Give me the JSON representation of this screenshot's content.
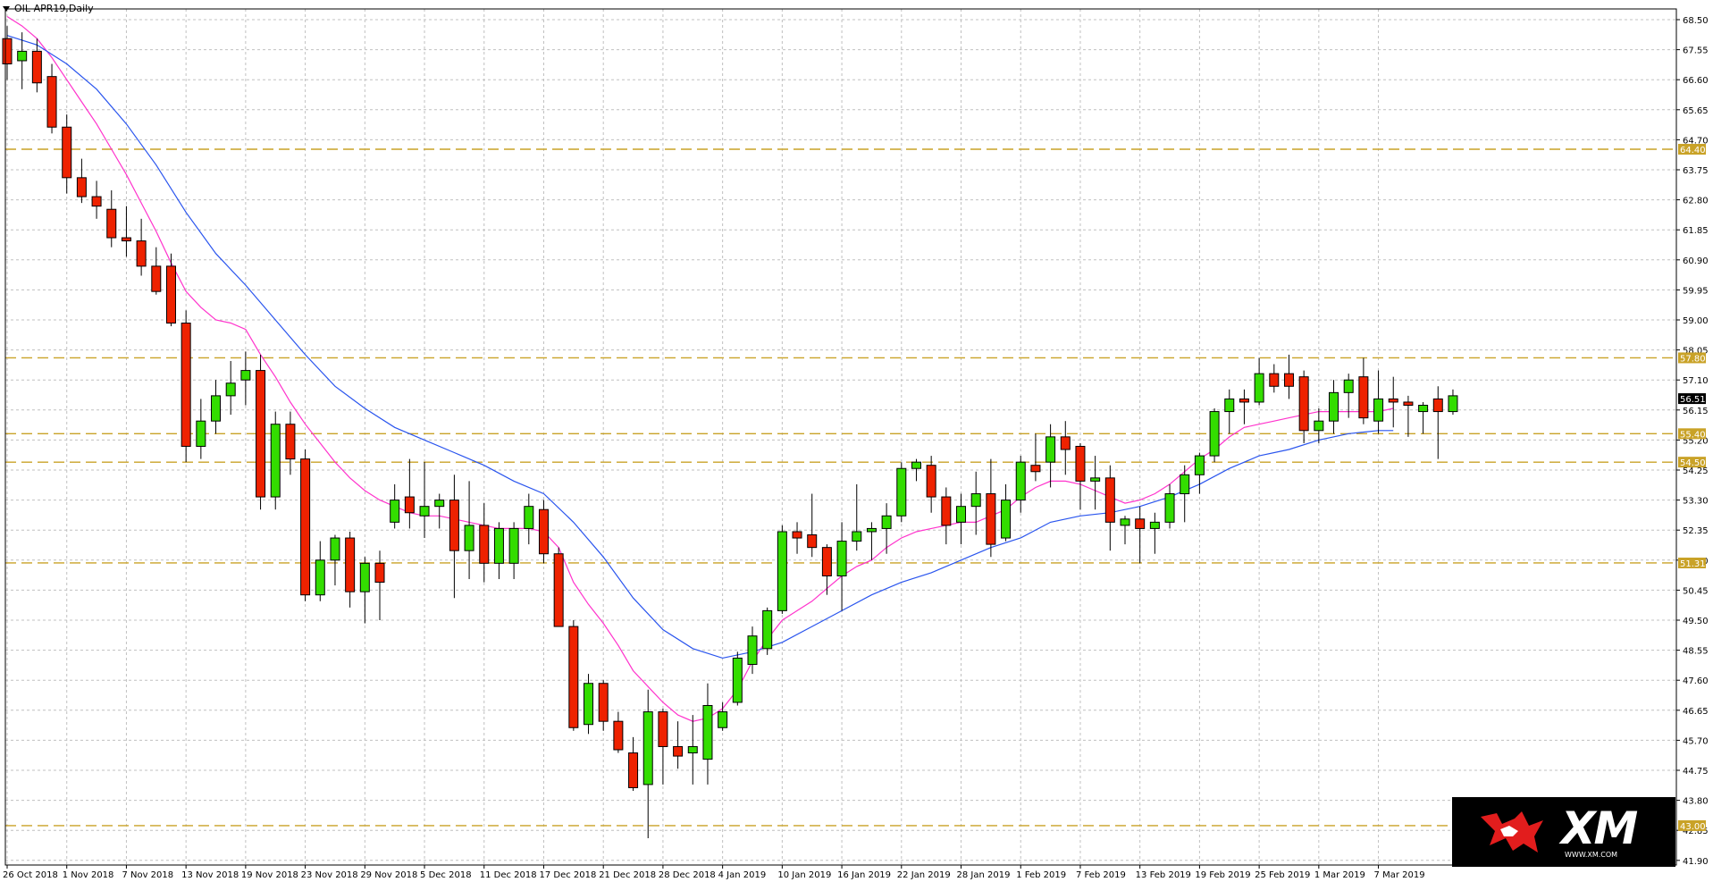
{
  "symbol_label": "OIL-APR19,Daily",
  "logo": {
    "brand": "XM",
    "url": "WWW.XM.COM"
  },
  "colors": {
    "background": "#ffffff",
    "grid": "#c0c0c0",
    "bull_candle": "#33dd00",
    "bear_candle": "#ee2200",
    "wick": "#000000",
    "fast_ma": "#ff33cc",
    "slow_ma": "#2a55ee",
    "level_line": "#c9a227",
    "level_tag_bg": "#c9a227",
    "price_tag_bg": "#000000"
  },
  "chart_data": {
    "type": "candlestick",
    "title": "OIL-APR19,Daily",
    "grid": true,
    "ylim": [
      41.2,
      69.1
    ],
    "y_ticks": [
      "68.50",
      "67.55",
      "66.60",
      "65.65",
      "64.70",
      "63.75",
      "62.80",
      "61.85",
      "60.90",
      "59.95",
      "59.00",
      "58.05",
      "57.10",
      "56.15",
      "55.20",
      "54.25",
      "53.30",
      "52.35",
      "51.40",
      "50.45",
      "49.50",
      "48.55",
      "47.60",
      "46.65",
      "45.70",
      "44.75",
      "43.80",
      "42.85",
      "41.90"
    ],
    "x_labels": [
      {
        "label": "26 Oct 2018",
        "index": 0
      },
      {
        "label": "1 Nov 2018",
        "index": 4
      },
      {
        "label": "7 Nov 2018",
        "index": 8
      },
      {
        "label": "13 Nov 2018",
        "index": 12
      },
      {
        "label": "19 Nov 2018",
        "index": 16
      },
      {
        "label": "23 Nov 2018",
        "index": 20
      },
      {
        "label": "29 Nov 2018",
        "index": 24
      },
      {
        "label": "5 Dec 2018",
        "index": 28
      },
      {
        "label": "11 Dec 2018",
        "index": 32
      },
      {
        "label": "17 Dec 2018",
        "index": 36
      },
      {
        "label": "21 Dec 2018",
        "index": 40
      },
      {
        "label": "28 Dec 2018",
        "index": 44
      },
      {
        "label": "4 Jan 2019",
        "index": 48
      },
      {
        "label": "10 Jan 2019",
        "index": 52
      },
      {
        "label": "16 Jan 2019",
        "index": 56
      },
      {
        "label": "22 Jan 2019",
        "index": 60
      },
      {
        "label": "28 Jan 2019",
        "index": 64
      },
      {
        "label": "1 Feb 2019",
        "index": 68
      },
      {
        "label": "7 Feb 2019",
        "index": 72
      },
      {
        "label": "13 Feb 2019",
        "index": 76
      },
      {
        "label": "19 Feb 2019",
        "index": 80
      },
      {
        "label": "25 Feb 2019",
        "index": 84
      },
      {
        "label": "1 Mar 2019",
        "index": 88
      },
      {
        "label": "7 Mar 2019",
        "index": 92
      }
    ],
    "ohlc": [
      [
        67.9,
        68.3,
        66.6,
        67.1
      ],
      [
        67.2,
        68.1,
        66.3,
        67.5
      ],
      [
        67.5,
        67.9,
        66.2,
        66.5
      ],
      [
        66.7,
        67.1,
        64.9,
        65.1
      ],
      [
        65.1,
        65.5,
        63.0,
        63.5
      ],
      [
        63.5,
        64.1,
        62.7,
        62.9
      ],
      [
        62.9,
        63.4,
        62.2,
        62.6
      ],
      [
        62.5,
        63.1,
        61.3,
        61.6
      ],
      [
        61.6,
        62.6,
        61.0,
        61.5
      ],
      [
        61.5,
        62.2,
        60.4,
        60.7
      ],
      [
        60.7,
        61.3,
        59.8,
        59.9
      ],
      [
        60.7,
        61.1,
        58.8,
        58.9
      ],
      [
        58.9,
        59.3,
        54.5,
        55.0
      ],
      [
        55.0,
        56.5,
        54.6,
        55.8
      ],
      [
        55.8,
        57.1,
        55.4,
        56.6
      ],
      [
        56.6,
        57.7,
        56.0,
        57.0
      ],
      [
        57.1,
        58.0,
        56.3,
        57.4
      ],
      [
        57.4,
        57.9,
        53.0,
        53.4
      ],
      [
        53.4,
        56.1,
        53.0,
        55.7
      ],
      [
        55.7,
        56.1,
        54.1,
        54.6
      ],
      [
        54.6,
        54.9,
        50.1,
        50.3
      ],
      [
        50.3,
        52.0,
        50.1,
        51.4
      ],
      [
        51.4,
        52.2,
        50.6,
        52.1
      ],
      [
        52.1,
        52.3,
        49.9,
        50.4
      ],
      [
        50.4,
        51.5,
        49.4,
        51.3
      ],
      [
        51.3,
        51.7,
        49.5,
        50.7
      ],
      [
        52.6,
        53.8,
        52.4,
        53.3
      ],
      [
        53.4,
        54.6,
        52.4,
        52.9
      ],
      [
        52.8,
        54.5,
        52.1,
        53.1
      ],
      [
        53.1,
        53.5,
        52.4,
        53.3
      ],
      [
        53.3,
        54.1,
        50.2,
        51.7
      ],
      [
        51.7,
        53.9,
        50.8,
        52.5
      ],
      [
        52.5,
        53.2,
        50.7,
        51.3
      ],
      [
        51.3,
        52.6,
        50.8,
        52.4
      ],
      [
        51.3,
        52.6,
        50.8,
        52.4
      ],
      [
        52.4,
        53.5,
        51.9,
        53.1
      ],
      [
        53.0,
        53.3,
        51.3,
        51.6
      ],
      [
        51.6,
        51.8,
        49.3,
        49.3
      ],
      [
        49.3,
        49.5,
        46.0,
        46.1
      ],
      [
        46.2,
        47.8,
        45.9,
        47.5
      ],
      [
        47.5,
        47.6,
        46.0,
        46.3
      ],
      [
        46.3,
        46.6,
        45.3,
        45.4
      ],
      [
        45.3,
        45.8,
        44.1,
        44.2
      ],
      [
        44.3,
        47.3,
        42.6,
        46.6
      ],
      [
        46.6,
        46.7,
        44.3,
        45.5
      ],
      [
        45.5,
        46.3,
        44.8,
        45.2
      ],
      [
        45.3,
        46.5,
        44.3,
        45.5
      ],
      [
        45.1,
        47.5,
        44.3,
        46.8
      ],
      [
        46.1,
        46.9,
        46.0,
        46.6
      ],
      [
        46.9,
        48.5,
        46.8,
        48.3
      ],
      [
        48.1,
        49.3,
        47.8,
        49.0
      ],
      [
        48.6,
        49.9,
        48.4,
        49.8
      ],
      [
        49.8,
        52.5,
        49.7,
        52.3
      ],
      [
        52.3,
        52.6,
        51.6,
        52.1
      ],
      [
        52.2,
        53.5,
        51.5,
        51.8
      ],
      [
        51.8,
        51.9,
        50.3,
        50.9
      ],
      [
        50.9,
        52.6,
        49.8,
        52.0
      ],
      [
        52.0,
        53.8,
        51.7,
        52.3
      ],
      [
        52.3,
        52.6,
        51.4,
        52.4
      ],
      [
        52.4,
        53.2,
        51.6,
        52.8
      ],
      [
        52.8,
        54.5,
        52.6,
        54.3
      ],
      [
        54.3,
        54.6,
        53.9,
        54.5
      ],
      [
        54.4,
        54.7,
        52.9,
        53.4
      ],
      [
        53.4,
        53.7,
        51.9,
        52.5
      ],
      [
        52.6,
        53.5,
        51.9,
        53.1
      ],
      [
        53.1,
        54.2,
        52.2,
        53.5
      ],
      [
        53.5,
        54.6,
        51.5,
        51.9
      ],
      [
        52.1,
        53.8,
        52.0,
        53.3
      ],
      [
        53.3,
        54.7,
        52.9,
        54.5
      ],
      [
        54.4,
        55.4,
        53.9,
        54.2
      ],
      [
        54.5,
        55.7,
        53.7,
        55.3
      ],
      [
        55.3,
        55.8,
        54.1,
        54.9
      ],
      [
        55.0,
        55.1,
        53.0,
        53.9
      ],
      [
        53.9,
        54.7,
        53.0,
        54.0
      ],
      [
        54.0,
        54.4,
        51.7,
        52.6
      ],
      [
        52.5,
        52.8,
        51.9,
        52.7
      ],
      [
        52.7,
        53.1,
        51.3,
        52.4
      ],
      [
        52.4,
        52.9,
        51.6,
        52.6
      ],
      [
        52.6,
        53.8,
        52.4,
        53.5
      ],
      [
        53.5,
        54.4,
        52.6,
        54.1
      ],
      [
        54.1,
        54.8,
        53.5,
        54.7
      ],
      [
        54.7,
        56.2,
        54.5,
        56.1
      ],
      [
        56.1,
        56.8,
        55.4,
        56.5
      ],
      [
        56.5,
        56.8,
        55.7,
        56.4
      ],
      [
        56.4,
        57.8,
        56.3,
        57.3
      ],
      [
        57.3,
        57.6,
        56.7,
        56.9
      ],
      [
        57.3,
        57.9,
        56.5,
        56.9
      ],
      [
        57.2,
        57.4,
        55.1,
        55.5
      ],
      [
        55.5,
        56.2,
        55.1,
        55.8
      ],
      [
        55.8,
        57.1,
        55.4,
        56.7
      ],
      [
        56.7,
        57.3,
        55.9,
        57.1
      ],
      [
        57.2,
        57.8,
        55.7,
        55.9
      ],
      [
        55.8,
        57.4,
        55.4,
        56.5
      ],
      [
        56.5,
        57.2,
        55.6,
        56.4
      ],
      [
        56.4,
        56.6,
        55.3,
        56.3
      ],
      [
        56.1,
        56.4,
        55.4,
        56.3
      ],
      [
        56.5,
        56.9,
        54.6,
        56.1
      ],
      [
        56.1,
        56.8,
        56.0,
        56.6
      ]
    ],
    "indicators": [
      {
        "kind": "moving_average",
        "color": "#ff33cc",
        "points": [
          [
            0,
            68.6
          ],
          [
            1,
            68.3
          ],
          [
            2,
            67.9
          ],
          [
            3,
            67.3
          ],
          [
            4,
            66.6
          ],
          [
            5,
            65.9
          ],
          [
            6,
            65.2
          ],
          [
            7,
            64.4
          ],
          [
            8,
            63.6
          ],
          [
            9,
            62.7
          ],
          [
            10,
            61.8
          ],
          [
            11,
            60.8
          ],
          [
            12,
            59.9
          ],
          [
            13,
            59.4
          ],
          [
            14,
            59.0
          ],
          [
            15,
            58.9
          ],
          [
            16,
            58.7
          ],
          [
            17,
            57.9
          ],
          [
            18,
            57.2
          ],
          [
            19,
            56.4
          ],
          [
            20,
            55.7
          ],
          [
            21,
            55.1
          ],
          [
            22,
            54.5
          ],
          [
            23,
            54.0
          ],
          [
            24,
            53.6
          ],
          [
            25,
            53.3
          ],
          [
            26,
            53.1
          ],
          [
            27,
            52.9
          ],
          [
            28,
            52.8
          ],
          [
            29,
            52.8
          ],
          [
            30,
            52.7
          ],
          [
            31,
            52.6
          ],
          [
            32,
            52.5
          ],
          [
            33,
            52.4
          ],
          [
            34,
            52.4
          ],
          [
            35,
            52.4
          ],
          [
            36,
            52.3
          ],
          [
            37,
            51.8
          ],
          [
            38,
            50.7
          ],
          [
            39,
            50.0
          ],
          [
            40,
            49.4
          ],
          [
            41,
            48.7
          ],
          [
            42,
            47.9
          ],
          [
            43,
            47.4
          ],
          [
            44,
            46.9
          ],
          [
            45,
            46.5
          ],
          [
            46,
            46.3
          ],
          [
            47,
            46.4
          ],
          [
            48,
            46.7
          ],
          [
            49,
            47.3
          ],
          [
            50,
            48.2
          ],
          [
            51,
            48.9
          ],
          [
            52,
            49.5
          ],
          [
            53,
            49.8
          ],
          [
            54,
            50.1
          ],
          [
            55,
            50.5
          ],
          [
            56,
            50.9
          ],
          [
            57,
            51.2
          ],
          [
            58,
            51.4
          ],
          [
            59,
            51.8
          ],
          [
            60,
            52.1
          ],
          [
            61,
            52.3
          ],
          [
            62,
            52.4
          ],
          [
            63,
            52.5
          ],
          [
            64,
            52.6
          ],
          [
            65,
            52.6
          ],
          [
            66,
            52.8
          ],
          [
            67,
            53.0
          ],
          [
            68,
            53.4
          ],
          [
            69,
            53.7
          ],
          [
            70,
            53.9
          ],
          [
            71,
            53.9
          ],
          [
            72,
            53.8
          ],
          [
            73,
            53.6
          ],
          [
            74,
            53.4
          ],
          [
            75,
            53.2
          ],
          [
            76,
            53.3
          ],
          [
            77,
            53.5
          ],
          [
            78,
            53.8
          ],
          [
            79,
            54.2
          ],
          [
            80,
            54.6
          ],
          [
            81,
            54.9
          ],
          [
            82,
            55.3
          ],
          [
            83,
            55.6
          ],
          [
            84,
            55.7
          ],
          [
            85,
            55.8
          ],
          [
            86,
            55.9
          ],
          [
            87,
            56.0
          ],
          [
            88,
            56.1
          ],
          [
            89,
            56.1
          ],
          [
            90,
            56.1
          ],
          [
            91,
            56.1
          ],
          [
            92,
            56.1
          ],
          [
            93,
            56.2
          ]
        ]
      },
      {
        "kind": "moving_average",
        "color": "#2a55ee",
        "points": [
          [
            0,
            68.0
          ],
          [
            2,
            67.7
          ],
          [
            4,
            67.1
          ],
          [
            6,
            66.3
          ],
          [
            8,
            65.2
          ],
          [
            10,
            63.9
          ],
          [
            12,
            62.4
          ],
          [
            14,
            61.1
          ],
          [
            16,
            60.1
          ],
          [
            18,
            59.0
          ],
          [
            20,
            57.9
          ],
          [
            22,
            56.9
          ],
          [
            24,
            56.2
          ],
          [
            26,
            55.6
          ],
          [
            28,
            55.2
          ],
          [
            30,
            54.8
          ],
          [
            32,
            54.4
          ],
          [
            34,
            53.9
          ],
          [
            36,
            53.5
          ],
          [
            38,
            52.6
          ],
          [
            40,
            51.5
          ],
          [
            42,
            50.2
          ],
          [
            44,
            49.2
          ],
          [
            46,
            48.6
          ],
          [
            48,
            48.3
          ],
          [
            50,
            48.5
          ],
          [
            52,
            48.8
          ],
          [
            54,
            49.3
          ],
          [
            56,
            49.8
          ],
          [
            58,
            50.3
          ],
          [
            60,
            50.7
          ],
          [
            62,
            51.0
          ],
          [
            64,
            51.4
          ],
          [
            66,
            51.8
          ],
          [
            68,
            52.1
          ],
          [
            70,
            52.6
          ],
          [
            72,
            52.8
          ],
          [
            74,
            52.9
          ],
          [
            76,
            53.1
          ],
          [
            78,
            53.4
          ],
          [
            80,
            53.8
          ],
          [
            82,
            54.3
          ],
          [
            84,
            54.7
          ],
          [
            86,
            54.9
          ],
          [
            88,
            55.2
          ],
          [
            90,
            55.4
          ],
          [
            92,
            55.5
          ],
          [
            93,
            55.5
          ]
        ]
      }
    ],
    "levels": [
      {
        "value": 64.4,
        "label": "64.40"
      },
      {
        "value": 57.8,
        "label": "57.80"
      },
      {
        "value": 55.4,
        "label": "55.40"
      },
      {
        "value": 54.5,
        "label": "54.50"
      },
      {
        "value": 51.31,
        "label": "51.31"
      },
      {
        "value": 43.0,
        "label": "43.00"
      }
    ],
    "current_price": {
      "value": 56.51,
      "label": "56.51"
    }
  }
}
